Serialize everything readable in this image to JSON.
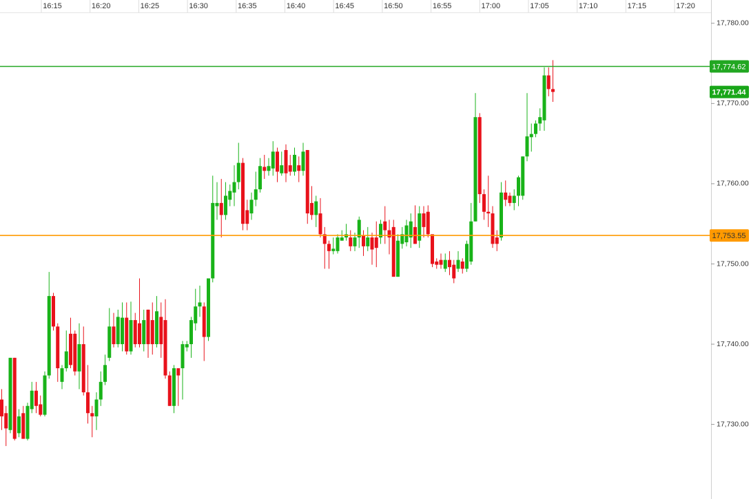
{
  "chart_data": {
    "type": "candlestick",
    "time_labels": [
      "16:15",
      "16:20",
      "16:25",
      "16:30",
      "16:35",
      "16:40",
      "16:45",
      "16:50",
      "16:55",
      "17:00",
      "17:05",
      "17:10",
      "17:15",
      "17:20"
    ],
    "ylim": [
      17720.7,
      17782.9
    ],
    "yticks": [
      {
        "value": 17730,
        "label": "17,730.00"
      },
      {
        "value": 17740,
        "label": "17,740.00"
      },
      {
        "value": 17750,
        "label": "17,750.00"
      },
      {
        "value": 17760,
        "label": "17,760.00"
      },
      {
        "value": 17770,
        "label": "17,770.00"
      },
      {
        "value": 17780,
        "label": "17,780.00"
      }
    ],
    "up_color": "#19b319",
    "down_color": "#e8121b",
    "levels": [
      {
        "value": 17774.62,
        "label": "17,774.62",
        "color": "#22a722",
        "text_color": "#ffffff"
      },
      {
        "value": 17753.55,
        "label": "17,753.55",
        "color": "#ff9a00",
        "text_color": "#333333"
      }
    ],
    "last_price": {
      "value": 17771.44,
      "label": "17,771.44",
      "color": "#19a619"
    },
    "ohlc": [
      [
        17733.1,
        17734.4,
        17729.3,
        17731.0
      ],
      [
        17731.4,
        17732.3,
        17727.3,
        17729.5
      ],
      [
        17729.3,
        17738.3,
        17728.9,
        17738.3
      ],
      [
        17738.3,
        17738.3,
        17728.0,
        17728.2
      ],
      [
        17728.9,
        17731.9,
        17728.4,
        17731.0
      ],
      [
        17731.4,
        17732.3,
        17728.2,
        17728.2
      ],
      [
        17728.2,
        17732.7,
        17728.0,
        17732.3
      ],
      [
        17731.9,
        17735.3,
        17731.4,
        17734.2
      ],
      [
        17734.2,
        17735.3,
        17731.4,
        17732.3
      ],
      [
        17732.5,
        17733.6,
        17731.0,
        17731.2
      ],
      [
        17731.2,
        17736.6,
        17731.0,
        17736.1
      ],
      [
        17736.1,
        17749.0,
        17735.7,
        17746.0
      ],
      [
        17746.0,
        17746.4,
        17741.7,
        17742.2
      ],
      [
        17742.2,
        17742.6,
        17735.3,
        17737.0
      ],
      [
        17735.3,
        17737.4,
        17734.4,
        17737.0
      ],
      [
        17737.0,
        17741.7,
        17736.6,
        17739.1
      ],
      [
        17741.3,
        17743.3,
        17737.0,
        17737.4
      ],
      [
        17741.3,
        17741.7,
        17736.1,
        17736.6
      ],
      [
        17736.6,
        17742.6,
        17734.4,
        17740.0
      ],
      [
        17740.0,
        17742.2,
        17733.6,
        17734.0
      ],
      [
        17734.0,
        17737.4,
        17730.1,
        17731.4
      ],
      [
        17731.4,
        17732.3,
        17728.4,
        17731.0
      ],
      [
        17731.0,
        17734.0,
        17729.3,
        17733.1
      ],
      [
        17733.1,
        17736.6,
        17732.3,
        17735.3
      ],
      [
        17735.3,
        17738.7,
        17734.9,
        17737.4
      ],
      [
        17738.3,
        17744.5,
        17737.9,
        17742.2
      ],
      [
        17742.2,
        17743.9,
        17739.6,
        17740.0
      ],
      [
        17740.0,
        17744.3,
        17739.6,
        17743.4
      ],
      [
        17740.0,
        17745.2,
        17739.1,
        17743.3
      ],
      [
        17743.3,
        17745.2,
        17738.7,
        17739.1
      ],
      [
        17739.1,
        17745.3,
        17738.7,
        17743.0
      ],
      [
        17743.0,
        17743.9,
        17739.6,
        17740.0
      ],
      [
        17742.6,
        17748.2,
        17739.6,
        17740.0
      ],
      [
        17740.0,
        17744.3,
        17739.1,
        17743.0
      ],
      [
        17744.3,
        17744.3,
        17738.3,
        17740.0
      ],
      [
        17743.0,
        17745.2,
        17738.7,
        17740.0
      ],
      [
        17740.0,
        17746.0,
        17739.6,
        17744.1
      ],
      [
        17743.4,
        17745.2,
        17738.3,
        17740.0
      ],
      [
        17743.0,
        17745.6,
        17735.7,
        17736.1
      ],
      [
        17736.1,
        17736.6,
        17732.3,
        17732.3
      ],
      [
        17732.3,
        17737.4,
        17731.4,
        17737.0
      ],
      [
        17737.0,
        17737.0,
        17732.3,
        17736.1
      ],
      [
        17737.0,
        17740.4,
        17733.1,
        17740.0
      ],
      [
        17739.6,
        17740.4,
        17739.1,
        17740.0
      ],
      [
        17740.0,
        17743.4,
        17738.3,
        17743.0
      ],
      [
        17742.6,
        17746.9,
        17741.7,
        17744.7
      ],
      [
        17744.7,
        17747.3,
        17743.4,
        17745.2
      ],
      [
        17744.7,
        17745.2,
        17737.9,
        17740.9
      ],
      [
        17740.9,
        17748.2,
        17740.4,
        17748.2
      ],
      [
        17748.2,
        17761.0,
        17747.7,
        17757.6
      ],
      [
        17757.2,
        17760.2,
        17755.5,
        17757.6
      ],
      [
        17757.6,
        17760.6,
        17753.3,
        17756.1
      ],
      [
        17756.1,
        17760.2,
        17755.5,
        17758.5
      ],
      [
        17758.0,
        17759.9,
        17757.2,
        17759.1
      ],
      [
        17758.9,
        17762.3,
        17757.2,
        17760.2
      ],
      [
        17760.2,
        17765.1,
        17759.3,
        17762.6
      ],
      [
        17762.6,
        17763.2,
        17754.2,
        17755.0
      ],
      [
        17756.7,
        17758.0,
        17754.2,
        17755.0
      ],
      [
        17756.3,
        17758.9,
        17755.5,
        17758.0
      ],
      [
        17758.0,
        17761.5,
        17757.2,
        17759.3
      ],
      [
        17759.3,
        17763.2,
        17758.9,
        17762.2
      ],
      [
        17762.1,
        17763.6,
        17760.6,
        17761.6
      ],
      [
        17761.6,
        17763.2,
        17761.0,
        17762.2
      ],
      [
        17761.9,
        17765.3,
        17761.0,
        17764.0
      ],
      [
        17764.0,
        17764.5,
        17760.2,
        17761.5
      ],
      [
        17761.3,
        17764.0,
        17761.0,
        17762.3
      ],
      [
        17764.2,
        17764.9,
        17760.2,
        17761.3
      ],
      [
        17762.3,
        17763.6,
        17761.0,
        17761.5
      ],
      [
        17761.5,
        17764.5,
        17761.0,
        17763.6
      ],
      [
        17762.3,
        17763.4,
        17760.2,
        17761.6
      ],
      [
        17761.6,
        17765.1,
        17761.0,
        17764.0
      ],
      [
        17764.2,
        17764.2,
        17755.0,
        17756.3
      ],
      [
        17757.6,
        17759.7,
        17755.5,
        17756.1
      ],
      [
        17756.1,
        17758.5,
        17754.6,
        17757.8
      ],
      [
        17756.3,
        17758.2,
        17753.3,
        17753.7
      ],
      [
        17753.7,
        17754.6,
        17749.4,
        17752.5
      ],
      [
        17752.5,
        17752.9,
        17749.4,
        17751.6
      ],
      [
        17751.6,
        17753.3,
        17751.2,
        17751.9
      ],
      [
        17751.6,
        17753.7,
        17751.3,
        17753.3
      ],
      [
        17752.9,
        17754.2,
        17752.9,
        17753.3
      ],
      [
        17753.3,
        17755.0,
        17752.9,
        17753.7
      ],
      [
        17753.3,
        17754.2,
        17751.6,
        17752.2
      ],
      [
        17752.2,
        17753.9,
        17751.6,
        17753.3
      ],
      [
        17753.3,
        17755.9,
        17752.0,
        17755.5
      ],
      [
        17753.5,
        17754.2,
        17751.0,
        17752.2
      ],
      [
        17752.2,
        17754.6,
        17751.6,
        17753.3
      ],
      [
        17753.3,
        17753.9,
        17749.9,
        17751.8
      ],
      [
        17753.3,
        17755.3,
        17749.6,
        17752.0
      ],
      [
        17753.3,
        17755.5,
        17752.5,
        17755.0
      ],
      [
        17755.3,
        17757.2,
        17752.5,
        17754.2
      ],
      [
        17754.2,
        17755.5,
        17751.2,
        17753.3
      ],
      [
        17754.6,
        17755.5,
        17748.4,
        17748.4
      ],
      [
        17748.4,
        17753.7,
        17748.4,
        17752.9
      ],
      [
        17752.5,
        17754.6,
        17751.9,
        17753.7
      ],
      [
        17752.7,
        17755.5,
        17752.2,
        17754.8
      ],
      [
        17753.3,
        17756.3,
        17752.0,
        17755.3
      ],
      [
        17754.6,
        17757.3,
        17752.5,
        17752.5
      ],
      [
        17752.9,
        17757.2,
        17752.0,
        17756.3
      ],
      [
        17756.3,
        17757.2,
        17753.3,
        17754.6
      ],
      [
        17756.5,
        17757.3,
        17753.3,
        17753.7
      ],
      [
        17753.7,
        17753.7,
        17749.6,
        17750.0
      ],
      [
        17750.3,
        17750.7,
        17749.4,
        17749.9
      ],
      [
        17750.5,
        17751.3,
        17749.4,
        17749.9
      ],
      [
        17749.4,
        17751.3,
        17749.0,
        17750.5
      ],
      [
        17750.5,
        17751.6,
        17748.6,
        17749.6
      ],
      [
        17749.9,
        17750.5,
        17747.6,
        17748.2
      ],
      [
        17749.4,
        17751.6,
        17749.0,
        17750.5
      ],
      [
        17750.3,
        17750.7,
        17748.8,
        17749.4
      ],
      [
        17749.4,
        17752.9,
        17749.0,
        17752.5
      ],
      [
        17750.3,
        17757.6,
        17749.9,
        17755.3
      ],
      [
        17755.3,
        17771.3,
        17755.3,
        17768.3
      ],
      [
        17768.3,
        17768.8,
        17757.6,
        17758.7
      ],
      [
        17758.7,
        17759.3,
        17755.5,
        17756.5
      ],
      [
        17756.5,
        17761.0,
        17754.6,
        17756.3
      ],
      [
        17756.3,
        17757.2,
        17752.0,
        17752.5
      ],
      [
        17753.3,
        17754.2,
        17751.6,
        17752.5
      ],
      [
        17753.3,
        17760.2,
        17752.9,
        17758.9
      ],
      [
        17758.9,
        17760.4,
        17757.2,
        17758.0
      ],
      [
        17758.5,
        17758.9,
        17757.2,
        17757.6
      ],
      [
        17757.6,
        17759.3,
        17756.7,
        17758.5
      ],
      [
        17758.5,
        17761.0,
        17757.2,
        17760.8
      ],
      [
        17758.5,
        17763.4,
        17758.0,
        17763.4
      ],
      [
        17763.4,
        17771.3,
        17762.8,
        17765.9
      ],
      [
        17765.8,
        17767.5,
        17764.0,
        17766.2
      ],
      [
        17766.2,
        17767.9,
        17765.8,
        17767.5
      ],
      [
        17767.5,
        17769.4,
        17766.6,
        17768.3
      ],
      [
        17767.9,
        17774.5,
        17766.6,
        17773.5
      ],
      [
        17773.5,
        17774.5,
        17770.9,
        17771.8
      ],
      [
        17771.8,
        17775.4,
        17770.2,
        17771.44
      ]
    ]
  }
}
